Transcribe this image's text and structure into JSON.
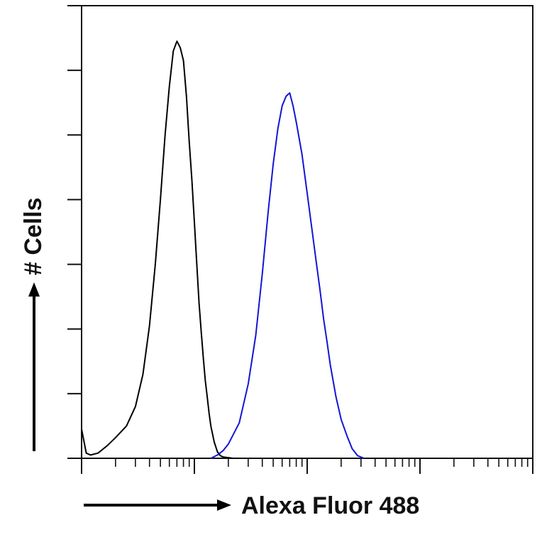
{
  "chart_data": {
    "type": "line",
    "title": "",
    "xlabel": "Alexa Fluor 488",
    "ylabel": "# Cells",
    "x_scale": "log",
    "xlim": [
      1,
      10000
    ],
    "ylim": [
      0,
      7
    ],
    "grid": false,
    "legend": "none",
    "series": [
      {
        "color": "#000000",
        "x": [
          1.0,
          1.1,
          1.2,
          1.4,
          1.7,
          2.0,
          2.5,
          3.0,
          3.5,
          4.0,
          4.5,
          5.0,
          5.5,
          6.0,
          6.5,
          7.0,
          7.5,
          8.0,
          8.5,
          9.0,
          9.5,
          10,
          10.5,
          11,
          11.5,
          12,
          12.5,
          13,
          13.5,
          14,
          15,
          16,
          17,
          18,
          20,
          22,
          25
        ],
        "y": [
          0.45,
          0.08,
          0.05,
          0.08,
          0.2,
          0.32,
          0.5,
          0.8,
          1.3,
          2.05,
          3.0,
          4.0,
          5.0,
          5.75,
          6.3,
          6.45,
          6.35,
          6.15,
          5.6,
          4.9,
          4.3,
          3.65,
          3.0,
          2.4,
          1.95,
          1.55,
          1.2,
          0.95,
          0.7,
          0.5,
          0.25,
          0.1,
          0.04,
          0.02,
          0.01,
          0.0,
          0.0
        ]
      },
      {
        "color": "#1414d6",
        "x": [
          14,
          16,
          18,
          20,
          25,
          30,
          35,
          40,
          45,
          50,
          55,
          60,
          65,
          70,
          75,
          80,
          90,
          100,
          110,
          120,
          130,
          140,
          150,
          160,
          180,
          200,
          225,
          250,
          280,
          320
        ],
        "y": [
          0.0,
          0.05,
          0.12,
          0.22,
          0.55,
          1.15,
          1.9,
          2.85,
          3.8,
          4.55,
          5.1,
          5.45,
          5.6,
          5.65,
          5.45,
          5.2,
          4.7,
          4.1,
          3.55,
          3.05,
          2.6,
          2.15,
          1.8,
          1.45,
          0.95,
          0.6,
          0.35,
          0.15,
          0.04,
          0.0
        ]
      }
    ]
  }
}
